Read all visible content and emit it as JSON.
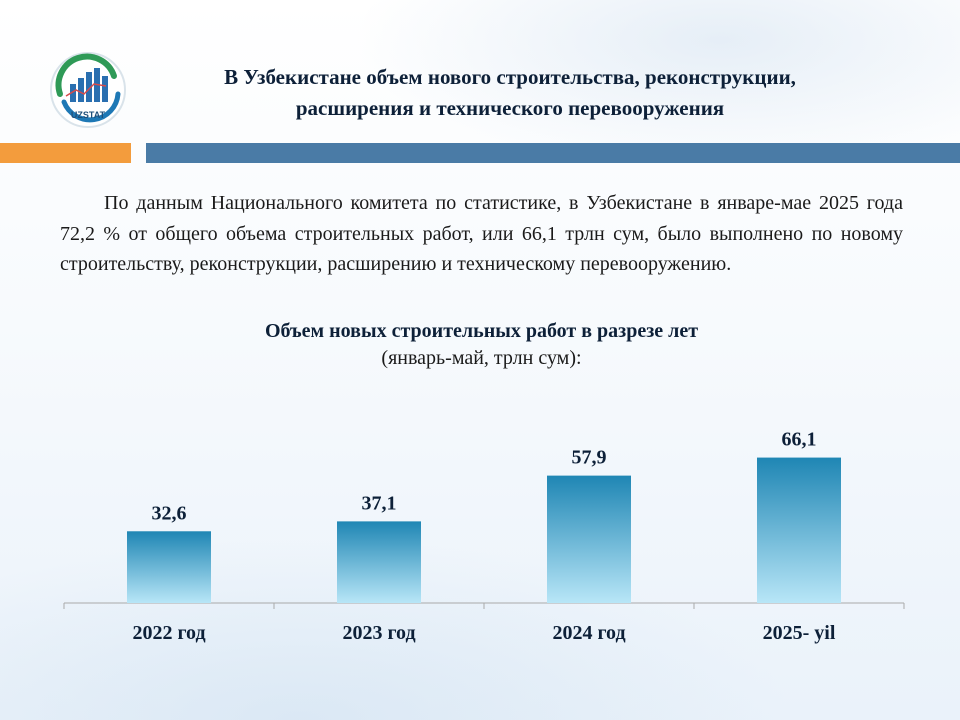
{
  "header": {
    "logo_text": "UZSTAT",
    "title_line1": "В Узбекистане объем нового строительства, реконструкции,",
    "title_line2": "расширения и технического перевооружения"
  },
  "body": {
    "paragraph": "По данным Национального комитета по статистике, в Узбекистане в январе-мае 2025 года 72,2 % от общего объема строительных работ, или 66,1 трлн сум, было выполнено по новому строительству, реконструкции, расширению и техническому перевооружению."
  },
  "colors": {
    "accent_orange": "#f39c3d",
    "accent_blue": "#4a7ba6",
    "bar_top": "#1f86b4",
    "bar_bottom": "#b8e6f7"
  },
  "chart_data": {
    "type": "bar",
    "title": "Объем новых строительных работ в разрезе лет",
    "subtitle": "(январь-май, трлн сум):",
    "categories": [
      "2022 год",
      "2023 год",
      "2024 год",
      "2025- yil"
    ],
    "values": [
      32.6,
      37.1,
      57.9,
      66.1
    ],
    "value_labels": [
      "32,6",
      "37,1",
      "57,9",
      "66,1"
    ],
    "xlabel": "",
    "ylabel": "",
    "ylim": [
      0,
      100
    ],
    "grid": false,
    "legend": "none"
  }
}
